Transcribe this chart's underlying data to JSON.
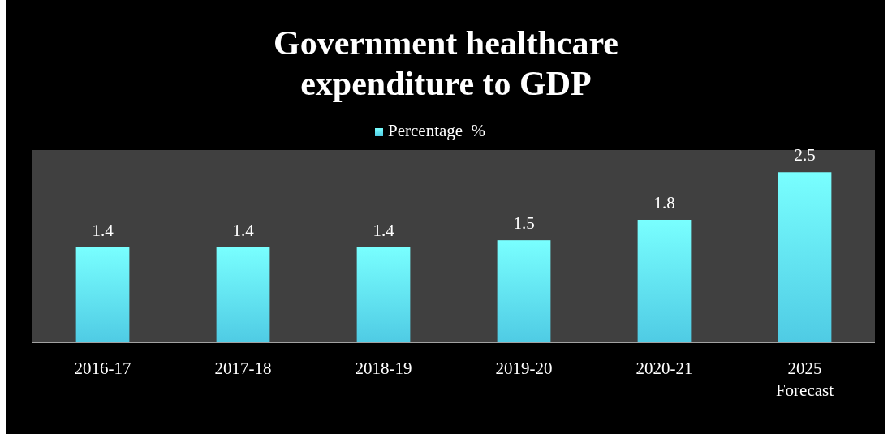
{
  "chart_data": {
    "type": "bar",
    "title": "Government healthcare expenditure to GDP",
    "categories": [
      "2016-17",
      "2017-18",
      "2018-19",
      "2019-20",
      "2020-21",
      "2025 Forecast"
    ],
    "series": [
      {
        "name": "Percentage  %",
        "color": "#4fcbe4",
        "values": [
          1.4,
          1.4,
          1.4,
          1.5,
          1.8,
          2.5
        ]
      }
    ],
    "data_labels": true,
    "legend": "top",
    "grid": false
  }
}
